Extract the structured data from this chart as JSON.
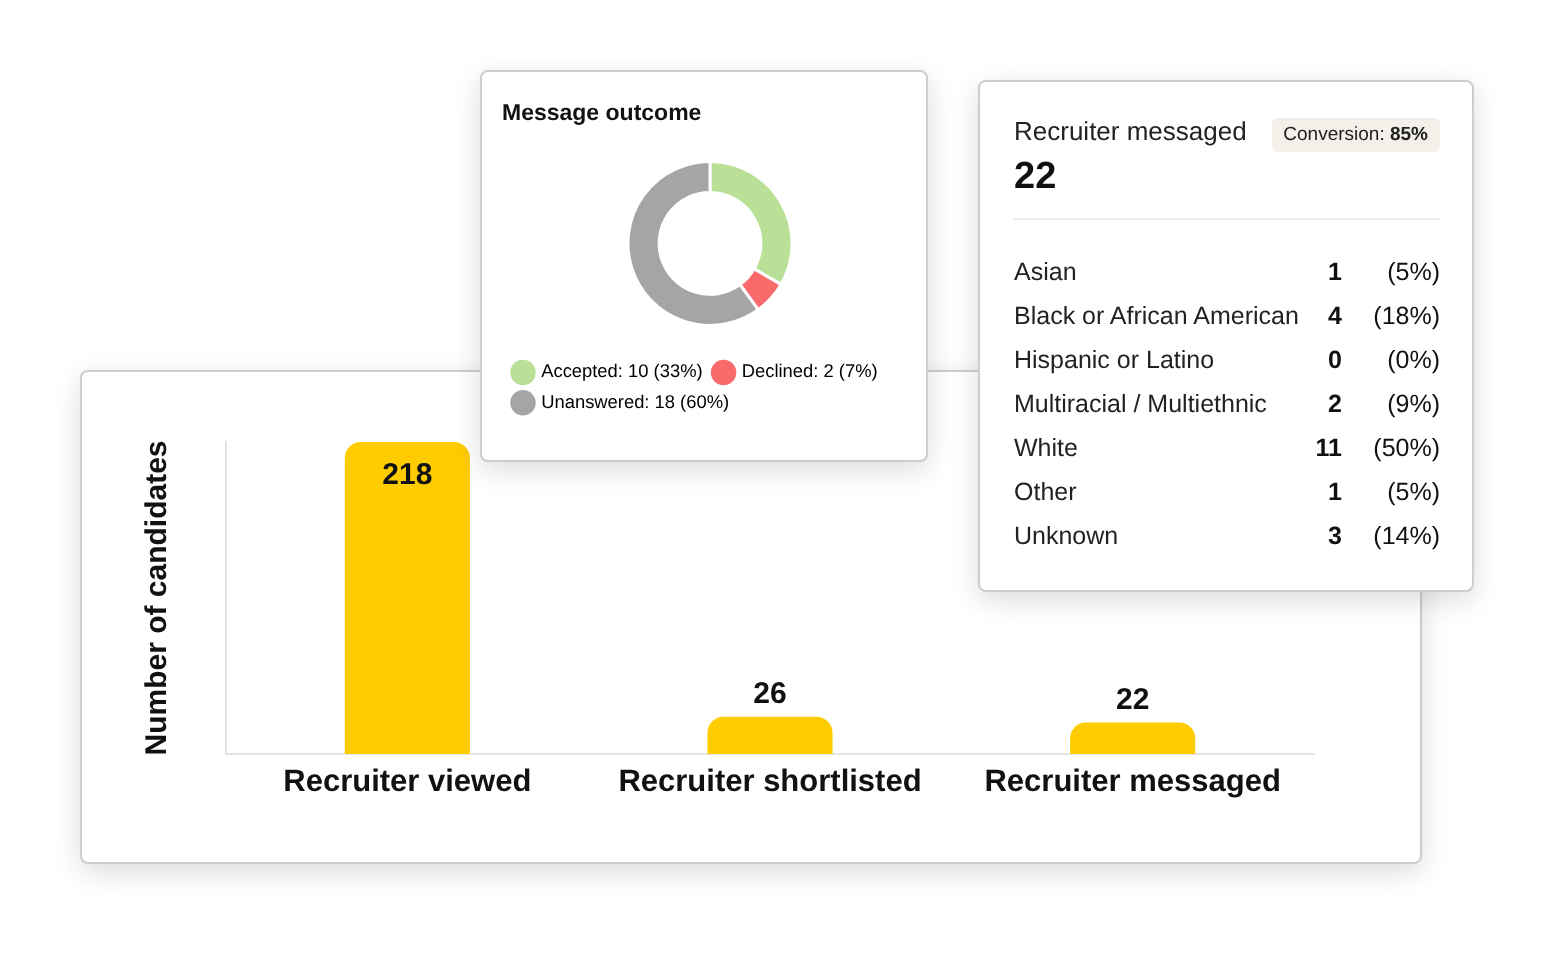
{
  "chart_data": [
    {
      "type": "donut",
      "title": "Message outcome",
      "categories": [
        "Accepted",
        "Declined",
        "Unanswered"
      ],
      "values": [
        10,
        2,
        18
      ],
      "value_labels": [
        "10 (33%)",
        "2 (7%)",
        "18 (60%)"
      ],
      "colors": [
        "#b9e096",
        "#f96a6a",
        "#a5a5a5"
      ],
      "legend": "bottom"
    },
    {
      "type": "other",
      "title": "Recruiter messaged",
      "annotations": [
        "22",
        "Conversion: 85%"
      ],
      "categories": [
        "Asian",
        "Black or African American",
        "Hispanic or Latino",
        "Multiracial / Multiethnic",
        "White",
        "Other",
        "Unknown"
      ],
      "series": [
        {
          "values": [
            1,
            4,
            0,
            2,
            11,
            1,
            3
          ]
        },
        {
          "values": [
            5,
            18,
            0,
            9,
            50,
            5,
            14
          ],
          "value_labels": [
            "(5%)",
            "(18%)",
            "(0%)",
            "(9%)",
            "(50%)",
            "(5%)",
            "(14%)"
          ]
        }
      ],
      "data_labels": true
    },
    {
      "type": "bar",
      "ylabel": "Number of candidates",
      "categories": [
        "Recruiter viewed",
        "Recruiter shortlisted",
        "Recruiter messaged"
      ],
      "values": [
        218,
        26,
        22
      ],
      "color": "#ffcc00",
      "data_labels": true,
      "tick_labels": "x"
    }
  ]
}
